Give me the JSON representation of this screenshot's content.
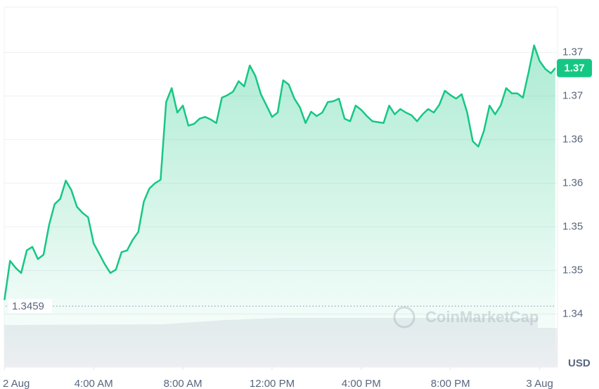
{
  "chart_data": {
    "type": "line",
    "x": [
      0,
      0.25,
      0.5,
      0.75,
      1,
      1.25,
      1.5,
      1.75,
      2,
      2.25,
      2.5,
      2.75,
      3,
      3.25,
      3.5,
      3.75,
      4,
      4.25,
      4.5,
      4.75,
      5,
      5.25,
      5.5,
      5.75,
      6,
      6.25,
      6.5,
      6.75,
      7,
      7.25,
      7.5,
      7.75,
      8,
      8.25,
      8.5,
      8.75,
      9,
      9.25,
      9.5,
      9.75,
      10,
      10.25,
      10.5,
      10.75,
      11,
      11.25,
      11.5,
      11.75,
      12,
      12.25,
      12.5,
      12.75,
      13,
      13.25,
      13.5,
      13.75,
      14,
      14.25,
      14.5,
      14.75,
      15,
      15.25,
      15.5,
      15.75,
      16,
      16.25,
      16.5,
      16.75,
      17,
      17.25,
      17.5,
      17.75,
      18,
      18.25,
      18.5,
      18.75,
      19,
      19.25,
      19.5,
      19.75,
      20,
      20.25,
      20.5,
      20.75,
      21,
      21.25,
      21.5,
      21.75,
      22,
      22.25,
      22.5,
      22.75,
      23,
      23.25,
      23.5,
      23.75,
      24,
      24.25,
      24.5,
      24.7
    ],
    "series": [
      {
        "color": "#16c784",
        "values": [
          1.3466,
          1.3511,
          1.3503,
          1.3497,
          1.3523,
          1.3527,
          1.3513,
          1.3518,
          1.3552,
          1.3576,
          1.3582,
          1.3603,
          1.3592,
          1.3573,
          1.3566,
          1.3561,
          1.3531,
          1.3519,
          1.3507,
          1.3497,
          1.3501,
          1.3521,
          1.3523,
          1.3535,
          1.3544,
          1.3579,
          1.3594,
          1.36,
          1.3604,
          1.3693,
          1.3709,
          1.3681,
          1.3689,
          1.3666,
          1.3668,
          1.3674,
          1.3676,
          1.3673,
          1.3669,
          1.3698,
          1.3701,
          1.3705,
          1.3717,
          1.3711,
          1.3735,
          1.3723,
          1.3702,
          1.3689,
          1.3676,
          1.3681,
          1.3718,
          1.3713,
          1.3697,
          1.3687,
          1.3669,
          1.3682,
          1.3677,
          1.3681,
          1.3693,
          1.3694,
          1.3697,
          1.3674,
          1.3671,
          1.3689,
          1.3684,
          1.3677,
          1.3671,
          1.367,
          1.3669,
          1.3689,
          1.3679,
          1.3685,
          1.3681,
          1.3678,
          1.3671,
          1.3679,
          1.3685,
          1.3681,
          1.369,
          1.3706,
          1.3701,
          1.3697,
          1.3702,
          1.3681,
          1.3648,
          1.3642,
          1.366,
          1.3689,
          1.3679,
          1.3689,
          1.3709,
          1.3703,
          1.3703,
          1.3698,
          1.3727,
          1.3758,
          1.374,
          1.3731,
          1.3726,
          1.3732
        ]
      }
    ],
    "xlim": [
      -0.2,
      24.8
    ],
    "xticks": [
      {
        "value": 0,
        "label": "2 Aug"
      },
      {
        "value": 4,
        "label": "4:00 AM"
      },
      {
        "value": 8,
        "label": "8:00 AM"
      },
      {
        "value": 12,
        "label": "12:00 PM"
      },
      {
        "value": 16,
        "label": "4:00 PM"
      },
      {
        "value": 20,
        "label": "8:00 PM"
      },
      {
        "value": 24,
        "label": "3 Aug"
      }
    ],
    "ylim": [
      1.3389,
      1.3802
    ],
    "yticks": [
      {
        "value": 1.345,
        "label": "1.34"
      },
      {
        "value": 1.35,
        "label": "1.35"
      },
      {
        "value": 1.355,
        "label": "1.35"
      },
      {
        "value": 1.36,
        "label": "1.36"
      },
      {
        "value": 1.365,
        "label": "1.36"
      },
      {
        "value": 1.37,
        "label": "1.37"
      },
      {
        "value": 1.375,
        "label": "1.37"
      }
    ],
    "grid": true,
    "open_price": 1.3459,
    "current_price": {
      "value": 1.3732,
      "label": "1.37"
    },
    "currency": "USD",
    "watermark": "CoinMarketCap"
  }
}
